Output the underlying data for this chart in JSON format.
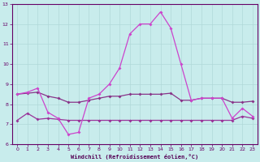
{
  "xlabel": "Windchill (Refroidissement éolien,°C)",
  "background_color": "#c8ecec",
  "line_color_top": "#cc44cc",
  "line_color_mid": "#883388",
  "line_color_bot": "#993399",
  "grid_color": "#b0d8d8",
  "xlim": [
    -0.5,
    23.5
  ],
  "ylim": [
    6,
    13
  ],
  "yticks": [
    6,
    7,
    8,
    9,
    10,
    11,
    12,
    13
  ],
  "xticks": [
    0,
    1,
    2,
    3,
    4,
    5,
    6,
    7,
    8,
    9,
    10,
    11,
    12,
    13,
    14,
    15,
    16,
    17,
    18,
    19,
    20,
    21,
    22,
    23
  ],
  "curve_top_x": [
    0,
    1,
    2,
    3,
    4,
    5,
    6,
    7,
    8,
    9,
    10,
    11,
    12,
    13,
    14,
    15,
    16,
    17,
    18,
    19,
    20,
    21,
    22,
    23
  ],
  "curve_top_y": [
    8.5,
    8.6,
    8.8,
    7.6,
    7.3,
    6.5,
    6.6,
    8.3,
    8.5,
    9.0,
    9.8,
    11.5,
    12.0,
    12.0,
    12.6,
    11.8,
    10.0,
    8.2,
    8.3,
    8.3,
    8.3,
    7.3,
    7.8,
    7.4
  ],
  "curve_mid_x": [
    0,
    1,
    2,
    3,
    4,
    5,
    6,
    7,
    8,
    9,
    10,
    11,
    12,
    13,
    14,
    15,
    16,
    17,
    18,
    19,
    20,
    21,
    22,
    23
  ],
  "curve_mid_y": [
    8.5,
    8.55,
    8.6,
    8.4,
    8.3,
    8.1,
    8.1,
    8.2,
    8.3,
    8.4,
    8.4,
    8.5,
    8.5,
    8.5,
    8.5,
    8.55,
    8.2,
    8.2,
    8.3,
    8.3,
    8.3,
    8.1,
    8.1,
    8.15
  ],
  "curve_bot_x": [
    0,
    1,
    2,
    3,
    4,
    5,
    6,
    7,
    8,
    9,
    10,
    11,
    12,
    13,
    14,
    15,
    16,
    17,
    18,
    19,
    20,
    21,
    22,
    23
  ],
  "curve_bot_y": [
    7.2,
    7.55,
    7.25,
    7.3,
    7.25,
    7.2,
    7.2,
    7.2,
    7.2,
    7.2,
    7.2,
    7.2,
    7.2,
    7.2,
    7.2,
    7.2,
    7.2,
    7.2,
    7.2,
    7.2,
    7.2,
    7.2,
    7.4,
    7.3
  ]
}
